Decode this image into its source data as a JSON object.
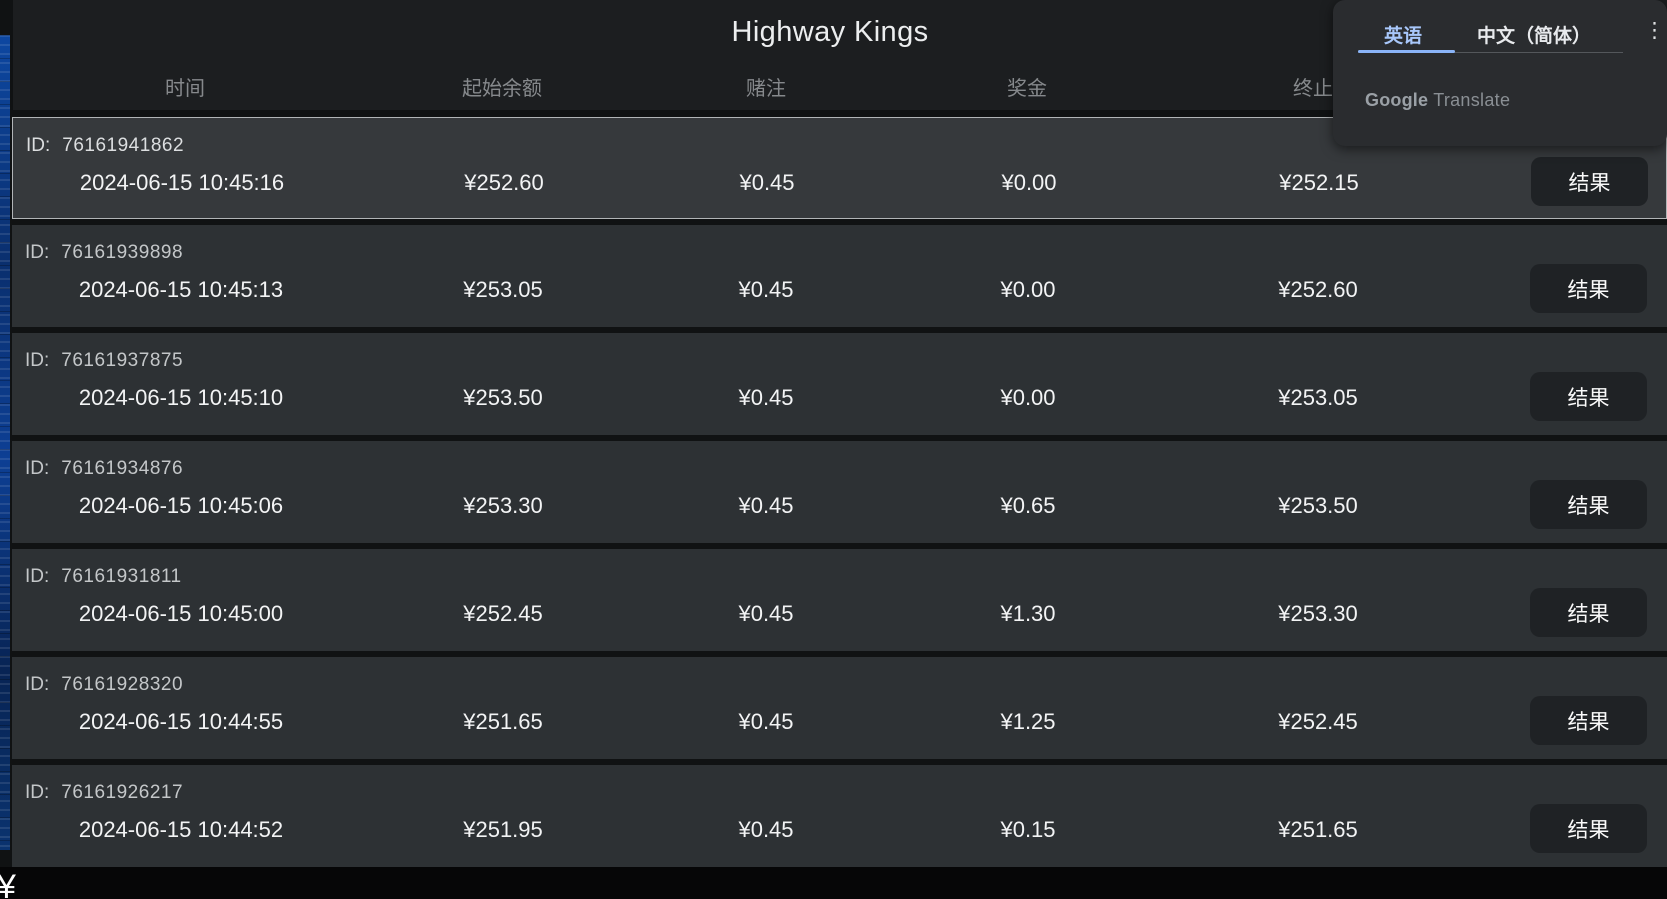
{
  "page": {
    "title": "Highway Kings",
    "bottom_left_fragment": "¥"
  },
  "table": {
    "columns": [
      "时间",
      "起始余额",
      "赌注",
      "奖金",
      "终止余额"
    ],
    "id_prefix": "ID:",
    "result_label": "结果",
    "rows": [
      {
        "id": "76161941862",
        "time": "2024-06-15 10:45:16",
        "start": "¥252.60",
        "bet": "¥0.45",
        "prize": "¥0.00",
        "end": "¥252.15",
        "selected": true
      },
      {
        "id": "76161939898",
        "time": "2024-06-15 10:45:13",
        "start": "¥253.05",
        "bet": "¥0.45",
        "prize": "¥0.00",
        "end": "¥252.60",
        "selected": false
      },
      {
        "id": "76161937875",
        "time": "2024-06-15 10:45:10",
        "start": "¥253.50",
        "bet": "¥0.45",
        "prize": "¥0.00",
        "end": "¥253.05",
        "selected": false
      },
      {
        "id": "76161934876",
        "time": "2024-06-15 10:45:06",
        "start": "¥253.30",
        "bet": "¥0.45",
        "prize": "¥0.65",
        "end": "¥253.50",
        "selected": false
      },
      {
        "id": "76161931811",
        "time": "2024-06-15 10:45:00",
        "start": "¥252.45",
        "bet": "¥0.45",
        "prize": "¥1.30",
        "end": "¥253.30",
        "selected": false
      },
      {
        "id": "76161928320",
        "time": "2024-06-15 10:44:55",
        "start": "¥251.65",
        "bet": "¥0.45",
        "prize": "¥1.25",
        "end": "¥252.45",
        "selected": false
      },
      {
        "id": "76161926217",
        "time": "2024-06-15 10:44:52",
        "start": "¥251.95",
        "bet": "¥0.45",
        "prize": "¥0.15",
        "end": "¥251.65",
        "selected": false
      }
    ]
  },
  "translate_popup": {
    "tabs": [
      {
        "label": "英语",
        "active": true
      },
      {
        "label": "中文（简体）",
        "active": false
      }
    ],
    "brand": {
      "google": "Google",
      "translate": "Translate"
    },
    "menu_icon": "kebab-menu-icon",
    "accent_color": "#8ab4f8"
  }
}
